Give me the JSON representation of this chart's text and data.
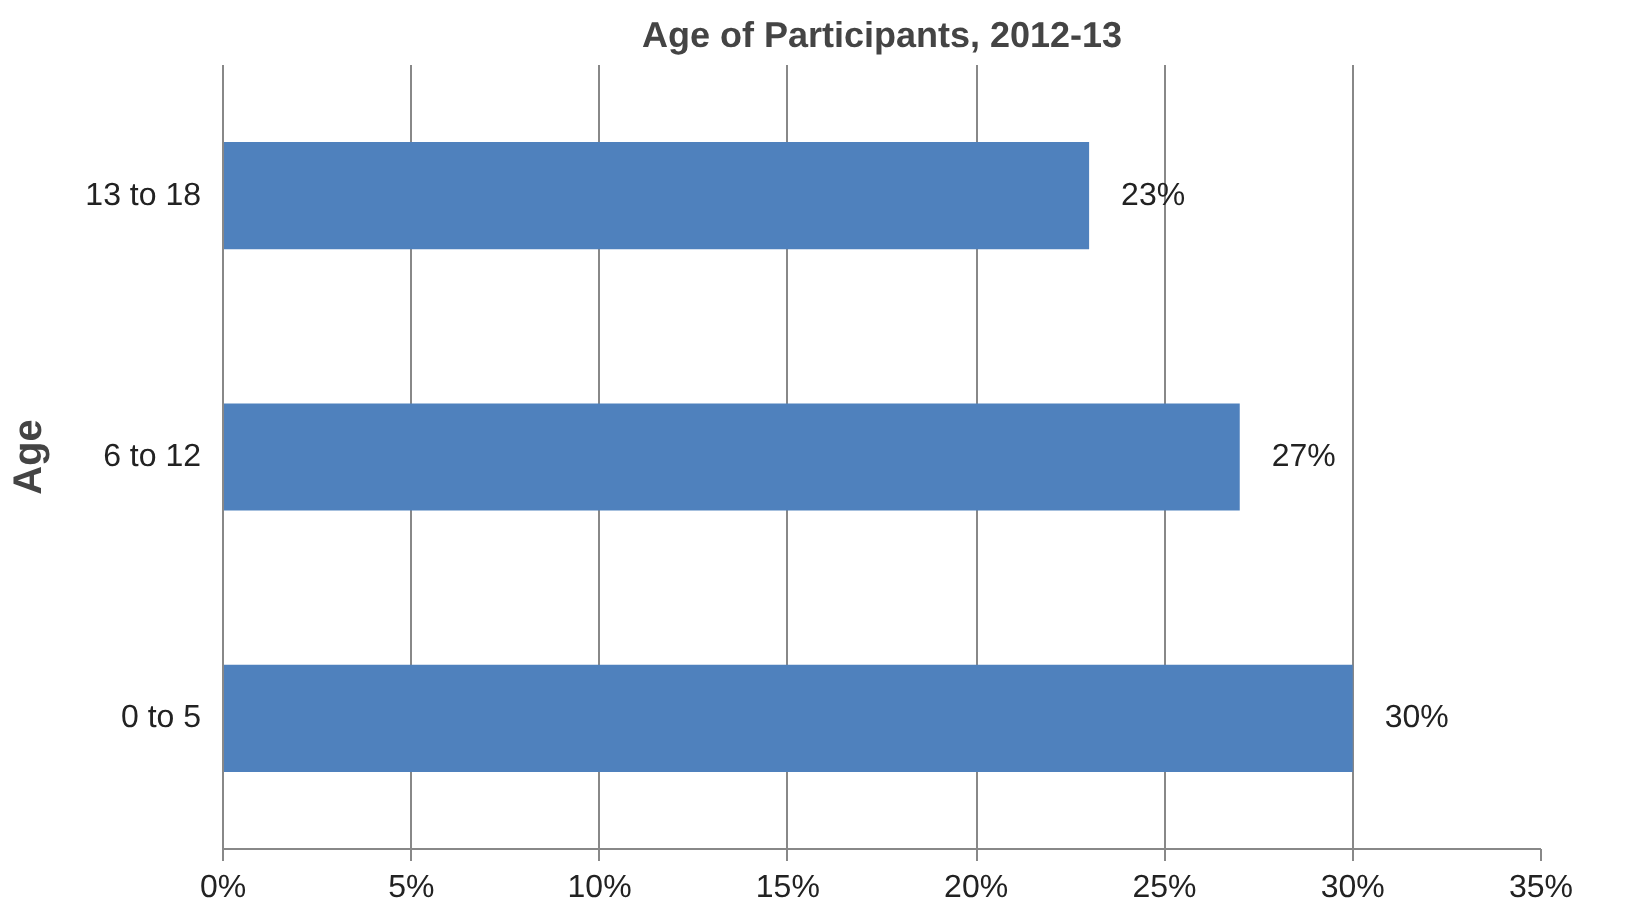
{
  "chart_data": {
    "type": "bar",
    "orientation": "horizontal",
    "title": "Age of Participants, 2012-13",
    "ylabel": "Age",
    "categories": [
      "13 to 18",
      "6 to 12",
      "0 to 5"
    ],
    "values": [
      23,
      27,
      30
    ],
    "value_labels": [
      "23%",
      "27%",
      "30%"
    ],
    "color": "#4f81bd",
    "xlim": [
      0,
      35
    ],
    "xticks": [
      {
        "value": 0,
        "label": "0%"
      },
      {
        "value": 5,
        "label": "5%"
      },
      {
        "value": 10,
        "label": "10%"
      },
      {
        "value": 15,
        "label": "15%"
      },
      {
        "value": 20,
        "label": "20%"
      },
      {
        "value": 25,
        "label": "25%"
      },
      {
        "value": 30,
        "label": "30%"
      },
      {
        "value": 35,
        "label": "35%"
      }
    ],
    "grid": "x"
  }
}
